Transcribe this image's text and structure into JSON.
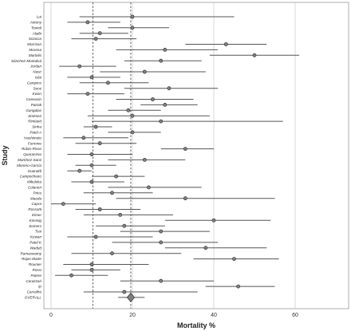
{
  "chart_data": {
    "type": "forest",
    "xlabel": "Mortality %",
    "ylabel": "Study",
    "xlim": [
      0,
      70
    ],
    "x_ticks": [
      0,
      20,
      40,
      60
    ],
    "grid": "vertical",
    "reference_lines": [
      10.3,
      19.6
    ],
    "studies": [
      {
        "name": "Lui",
        "estimate": 20.0,
        "lower": 7.0,
        "upper": 45.0
      },
      {
        "name": "Antony",
        "estimate": 9.0,
        "lower": 4.0,
        "upper": 17.0
      },
      {
        "name": "Tonioli",
        "estimate": 20.0,
        "lower": 14.0,
        "upper": 29.0
      },
      {
        "name": "Alaibi",
        "estimate": 12.0,
        "lower": 7.0,
        "upper": 19.0
      },
      {
        "name": "Sciacca",
        "estimate": 11.0,
        "lower": 5.0,
        "upper": 21.0
      },
      {
        "name": "Morrison",
        "estimate": 43.0,
        "lower": 33.0,
        "upper": 53.0
      },
      {
        "name": "Morena",
        "estimate": 28.0,
        "lower": 16.0,
        "upper": 41.0
      },
      {
        "name": "Martelis",
        "estimate": 50.0,
        "lower": 39.0,
        "upper": 61.0
      },
      {
        "name": "Sánchez-Montalvá",
        "estimate": 27.0,
        "lower": 18.0,
        "upper": 37.0
      },
      {
        "name": "Jordan",
        "estimate": 7.0,
        "lower": 2.0,
        "upper": 16.0
      },
      {
        "name": "Nasir",
        "estimate": 23.0,
        "lower": 12.0,
        "upper": 38.0
      },
      {
        "name": "Islai",
        "estimate": 10.0,
        "lower": 4.0,
        "upper": 17.0
      },
      {
        "name": "Campins",
        "estimate": 14.0,
        "lower": 7.0,
        "upper": 24.0
      },
      {
        "name": "Senz",
        "estimate": 29.0,
        "lower": 18.0,
        "upper": 41.0
      },
      {
        "name": "Kwon",
        "estimate": 9.0,
        "lower": 4.0,
        "upper": 18.0
      },
      {
        "name": "Coenusin",
        "estimate": 25.0,
        "lower": 16.0,
        "upper": 35.0
      },
      {
        "name": "Patrak",
        "estimate": 28.0,
        "lower": 22.0,
        "upper": 36.0
      },
      {
        "name": "Gangalas",
        "estimate": 19.0,
        "lower": 14.0,
        "upper": 27.0
      },
      {
        "name": "Jiménez",
        "estimate": 20.0,
        "lower": 9.0,
        "upper": 39.0
      },
      {
        "name": "Rimland",
        "estimate": 27.0,
        "lower": 10.0,
        "upper": 57.0
      },
      {
        "name": "Sinha",
        "estimate": 11.0,
        "lower": 8.0,
        "upper": 15.0
      },
      {
        "name": "Patel A",
        "estimate": 20.0,
        "lower": 14.0,
        "upper": 27.0
      },
      {
        "name": "Hashimoto",
        "estimate": 8.0,
        "lower": 3.0,
        "upper": 19.0
      },
      {
        "name": "Formme",
        "estimate": 12.0,
        "lower": 6.0,
        "upper": 21.0
      },
      {
        "name": "Rubio-Rivas",
        "estimate": 33.0,
        "lower": 27.0,
        "upper": 40.0
      },
      {
        "name": "Quaranzoo",
        "estimate": 10.0,
        "lower": 4.0,
        "upper": 20.0
      },
      {
        "name": "Martínez-Sanz",
        "estimate": 23.0,
        "lower": 14.0,
        "upper": 33.0
      },
      {
        "name": "Moreno-García",
        "estimate": 10.0,
        "lower": 6.0,
        "upper": 16.0
      },
      {
        "name": "Guaraldi",
        "estimate": 7.0,
        "lower": 4.0,
        "upper": 10.0
      },
      {
        "name": "Campochiaro",
        "estimate": 16.0,
        "lower": 10.0,
        "upper": 23.0
      },
      {
        "name": "Mikulska",
        "estimate": 10.0,
        "lower": 5.0,
        "upper": 18.0
      },
      {
        "name": "Colaneri",
        "estimate": 24.0,
        "lower": 14.0,
        "upper": 37.0
      },
      {
        "name": "Price",
        "estimate": 15.0,
        "lower": 8.0,
        "upper": 25.0
      },
      {
        "name": "Maeda",
        "estimate": 33.0,
        "lower": 16.0,
        "upper": 55.0
      },
      {
        "name": "Capra",
        "estimate": 3.0,
        "lower": 0.0,
        "upper": 11.0
      },
      {
        "name": "Rossotti",
        "estimate": 12.0,
        "lower": 6.0,
        "upper": 22.0
      },
      {
        "name": "Eimer",
        "estimate": 17.0,
        "lower": 8.0,
        "upper": 30.0
      },
      {
        "name": "Kimmig",
        "estimate": 40.0,
        "lower": 28.0,
        "upper": 54.0
      },
      {
        "name": "Somers",
        "estimate": 18.0,
        "lower": 11.0,
        "upper": 28.0
      },
      {
        "name": "Tsai",
        "estimate": 27.0,
        "lower": 17.0,
        "upper": 39.0
      },
      {
        "name": "Kewan",
        "estimate": 11.0,
        "lower": 4.0,
        "upper": 25.0
      },
      {
        "name": "Patel K",
        "estimate": 27.0,
        "lower": 15.0,
        "upper": 41.0
      },
      {
        "name": "Wadud",
        "estimate": 38.0,
        "lower": 28.0,
        "upper": 53.0
      },
      {
        "name": "Ramaswamy",
        "estimate": 15.0,
        "lower": 5.0,
        "upper": 32.0
      },
      {
        "name": "Rojas-Marte",
        "estimate": 45.0,
        "lower": 35.0,
        "upper": 56.0
      },
      {
        "name": "Rounier",
        "estimate": 10.0,
        "lower": 3.0,
        "upper": 24.0
      },
      {
        "name": "Rossi",
        "estimate": 10.0,
        "lower": 5.0,
        "upper": 17.0
      },
      {
        "name": "Patere",
        "estimate": 5.0,
        "lower": 1.0,
        "upper": 14.0
      },
      {
        "name": "Carazzari",
        "estimate": 27.0,
        "lower": 17.0,
        "upper": 40.0
      },
      {
        "name": "Ip",
        "estimate": 46.0,
        "lower": 38.0,
        "upper": 55.0
      },
      {
        "name": "Carvalho",
        "estimate": 18.0,
        "lower": 8.0,
        "upper": 36.0
      },
      {
        "name": "OVERALL",
        "estimate": 19.6,
        "lower": 16.5,
        "upper": 23.0,
        "pooled": true
      }
    ]
  },
  "colors": {
    "line": "#555555",
    "marker": "#7f7f7f",
    "marker_edge": "#2b2b2b",
    "grid": "#c8c8c8",
    "reference": "#222222",
    "frame": "#9a9a9a"
  }
}
